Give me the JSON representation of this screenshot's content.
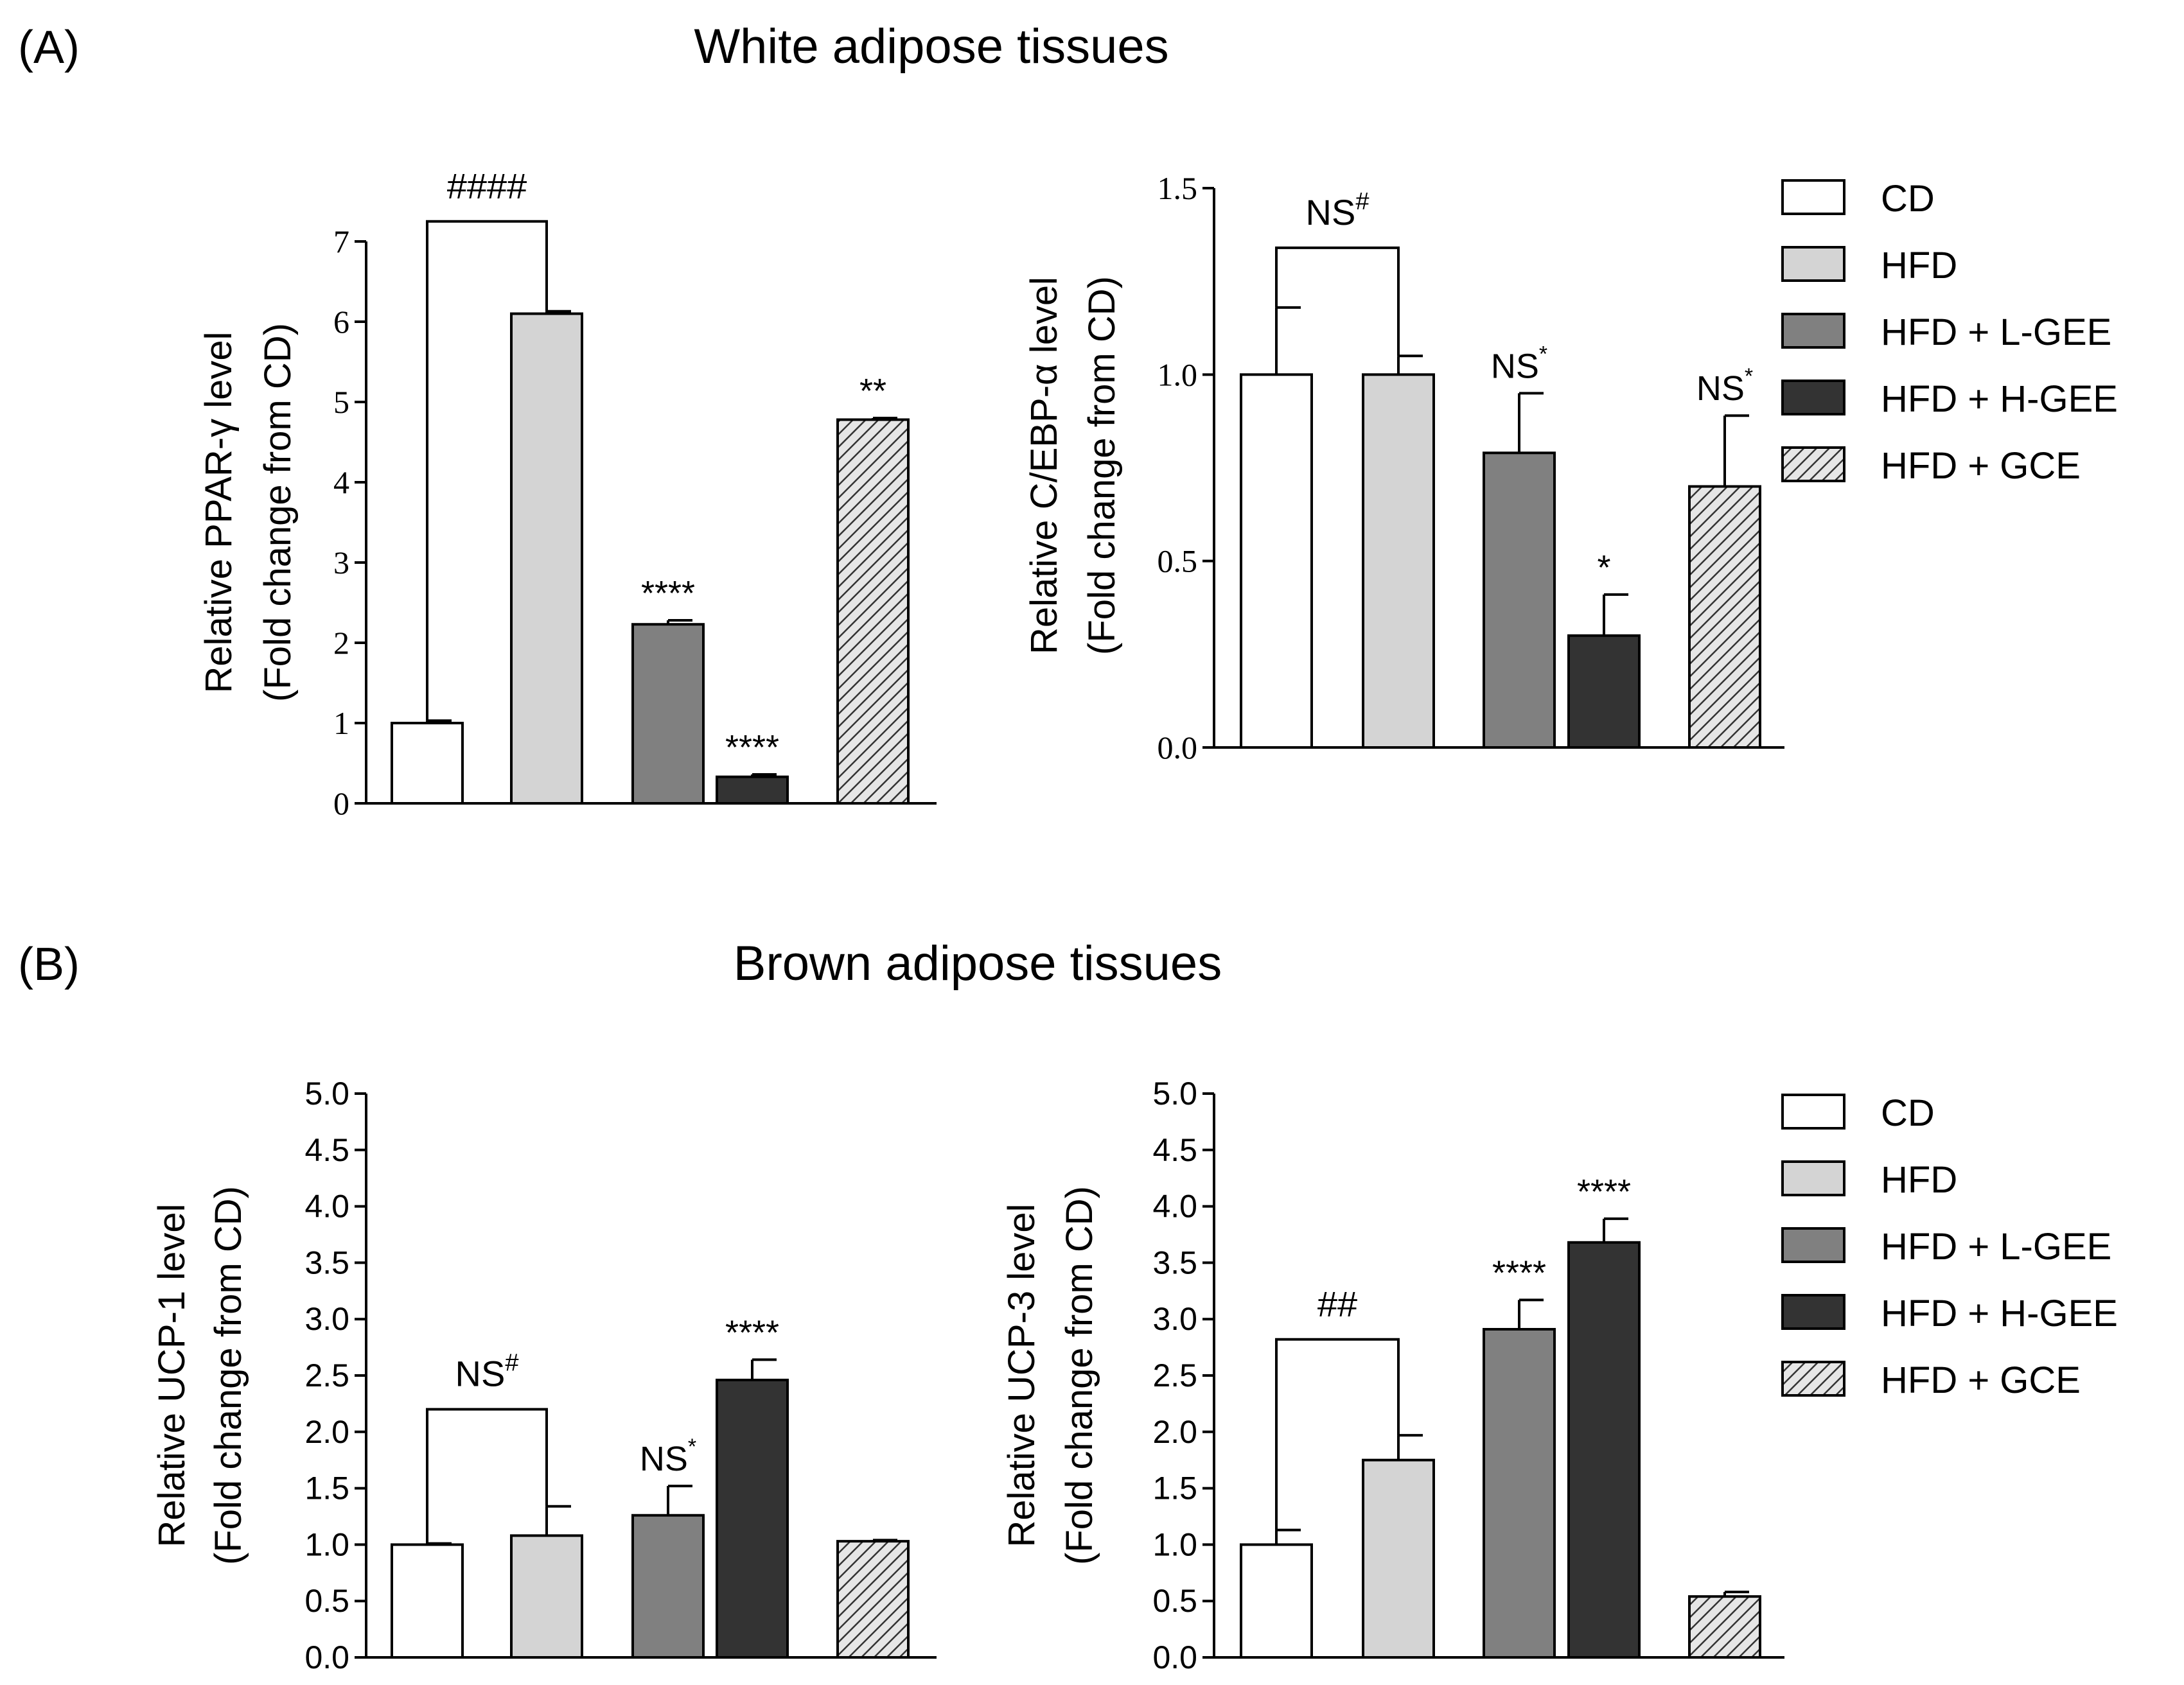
{
  "figure": {
    "panel_a": {
      "label": "(A)",
      "title": "White adipose tissues"
    },
    "panel_b": {
      "label": "(B)",
      "title": "Brown adipose tissues"
    }
  },
  "colors": {
    "CD": "#ffffff",
    "HFD": "#d4d4d4",
    "L-GEE": "#808080",
    "H-GEE": "#333333",
    "GCE": "hatch"
  },
  "chart_data": [
    {
      "type": "bar",
      "id": "ppar",
      "ylabel": [
        "Relative PPAR-γ  level",
        "(Fold change from CD)"
      ],
      "yticks": [
        "0",
        "1",
        "2",
        "3",
        "4",
        "5",
        "6",
        "7"
      ],
      "ylim": [
        0,
        7
      ],
      "font": "serif",
      "categories": [
        "CD",
        "HFD",
        "HFD + L-GEE",
        "HFD + H-GEE",
        "HFD + GCE"
      ],
      "values": [
        1.0,
        6.1,
        2.23,
        0.33,
        4.78
      ],
      "errors": [
        0.03,
        0.03,
        0.05,
        0.03,
        0.02
      ],
      "annotations": [
        "",
        "",
        "****",
        "****",
        "**"
      ],
      "bracket": {
        "label": "####",
        "sup": "",
        "from": 0,
        "to": 1,
        "y": 7.25
      }
    },
    {
      "type": "bar",
      "id": "cebp",
      "ylabel": [
        "Relative C/EBP-α  level",
        "(Fold change from CD)"
      ],
      "yticks": [
        "0.0",
        "0.5",
        "1.0",
        "1.5"
      ],
      "ylim": [
        0,
        1.5
      ],
      "font": "serif",
      "categories": [
        "CD",
        "HFD",
        "HFD + L-GEE",
        "HFD + H-GEE",
        "HFD + GCE"
      ],
      "values": [
        1.0,
        1.0,
        0.79,
        0.3,
        0.7
      ],
      "errors": [
        0.18,
        0.05,
        0.16,
        0.11,
        0.19
      ],
      "annotations": [
        "",
        "",
        "NS",
        "*",
        "NS"
      ],
      "annotation_sups": [
        "",
        "",
        "*",
        "",
        "*"
      ],
      "bracket": {
        "label": "NS",
        "sup": "#",
        "from": 0,
        "to": 1,
        "y": 1.34
      },
      "legend": [
        "CD",
        "HFD",
        "HFD + L-GEE",
        "HFD + H-GEE",
        "HFD + GCE"
      ]
    },
    {
      "type": "bar",
      "id": "ucp1",
      "ylabel": [
        "Relative UCP-1 level",
        "(Fold change from CD)"
      ],
      "yticks": [
        "0.0",
        "0.5",
        "1.0",
        "1.5",
        "2.0",
        "2.5",
        "3.0",
        "3.5",
        "4.0",
        "4.5",
        "5.0"
      ],
      "ylim": [
        0,
        5
      ],
      "font": "sans",
      "categories": [
        "CD",
        "HFD",
        "HFD + L-GEE",
        "HFD + H-GEE",
        "HFD + GCE"
      ],
      "values": [
        1.0,
        1.08,
        1.26,
        2.46,
        1.03
      ],
      "errors": [
        0.01,
        0.26,
        0.26,
        0.18,
        0.01
      ],
      "annotations": [
        "",
        "",
        "NS",
        "****",
        ""
      ],
      "annotation_sups": [
        "",
        "",
        "*",
        "",
        ""
      ],
      "bracket": {
        "label": "NS",
        "sup": "#",
        "from": 0,
        "to": 1,
        "y": 2.2
      }
    },
    {
      "type": "bar",
      "id": "ucp3",
      "ylabel": [
        "Relative UCP-3 level",
        "(Fold change from CD)"
      ],
      "yticks": [
        "0.0",
        "0.5",
        "1.0",
        "1.5",
        "2.0",
        "2.5",
        "3.0",
        "3.5",
        "4.0",
        "4.5",
        "5.0"
      ],
      "ylim": [
        0,
        5
      ],
      "font": "sans",
      "categories": [
        "CD",
        "HFD",
        "HFD + L-GEE",
        "HFD + H-GEE",
        "HFD + GCE"
      ],
      "values": [
        1.0,
        1.75,
        2.91,
        3.68,
        0.54
      ],
      "errors": [
        0.13,
        0.22,
        0.26,
        0.21,
        0.04
      ],
      "annotations": [
        "",
        "",
        "****",
        "****",
        ""
      ],
      "annotation_sups": [
        "",
        "",
        "",
        "",
        ""
      ],
      "bracket": {
        "label": "##",
        "sup": "",
        "from": 0,
        "to": 1,
        "y": 2.82
      },
      "legend": [
        "CD",
        "HFD",
        "HFD + L-GEE",
        "HFD + H-GEE",
        "HFD + GCE"
      ]
    }
  ]
}
